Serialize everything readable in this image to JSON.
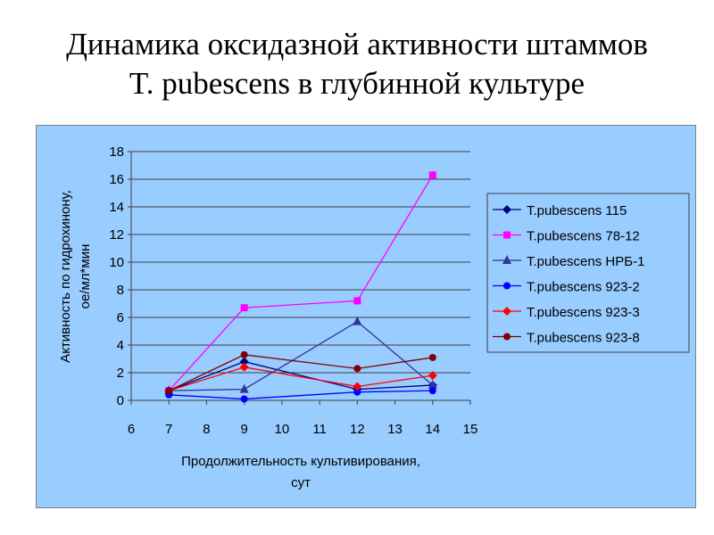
{
  "title_line1": "Динамика оксидазной активности штаммов",
  "title_line2": "T. pubescens  в глубинной культуре",
  "chart_data": {
    "type": "line",
    "title": "Динамика оксидазной активности штаммов T. pubescens в глубинной культуре",
    "xlabel_line1": "Продолжительность культивирования,",
    "xlabel_line2": "сут",
    "ylabel_line1": "Активность по гидрохинону,",
    "ylabel_line2": "ое/мл*мин",
    "xlim": [
      6,
      15
    ],
    "ylim": [
      0,
      18
    ],
    "xticks": [
      6,
      7,
      8,
      9,
      10,
      11,
      12,
      13,
      14,
      15
    ],
    "yticks": [
      0,
      2,
      4,
      6,
      8,
      10,
      12,
      14,
      16,
      18
    ],
    "grid": "horizontal",
    "legend": "right",
    "x": [
      7,
      9,
      12,
      14
    ],
    "series": [
      {
        "name": "T.pubescens 115",
        "color": "#000080",
        "marker": "diamond",
        "values": [
          0.7,
          2.8,
          0.8,
          1.1
        ]
      },
      {
        "name": "T.pubescens  78-12",
        "color": "#ff00ff",
        "marker": "square",
        "values": [
          0.7,
          6.7,
          7.2,
          16.3
        ]
      },
      {
        "name": "T.pubescens  НРБ-1",
        "color": "#333399",
        "marker": "triangle",
        "values": [
          0.7,
          0.8,
          5.7,
          1.1
        ]
      },
      {
        "name": "T.pubescens  923-2",
        "color": "#0000ff",
        "marker": "circle",
        "values": [
          0.4,
          0.1,
          0.6,
          0.7
        ]
      },
      {
        "name": "T.pubescens  923-3",
        "color": "#ff0000",
        "marker": "diamond",
        "values": [
          0.7,
          2.4,
          1.0,
          1.8
        ]
      },
      {
        "name": "T.pubescens  923-8",
        "color": "#800000",
        "marker": "circle",
        "values": [
          0.7,
          3.3,
          2.3,
          3.1
        ]
      }
    ]
  }
}
